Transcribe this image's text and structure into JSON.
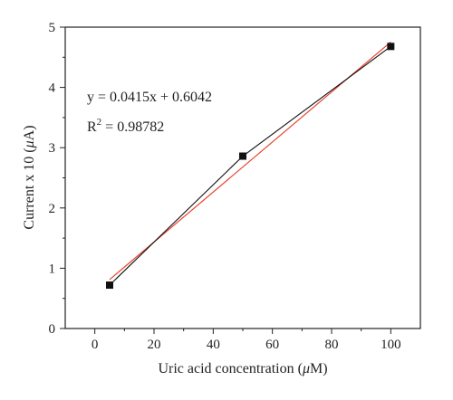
{
  "chart_data": {
    "type": "scatter",
    "xlabel_prefix": "Uric acid concentration (",
    "xlabel_unit_mu": "μ",
    "xlabel_unit_rest": "M)",
    "ylabel_prefix": "Current x 10 (",
    "ylabel_unit_mu": "μ",
    "ylabel_unit_rest": "A)",
    "xlim": [
      -10,
      110
    ],
    "ylim": [
      0,
      5
    ],
    "xticks": [
      0,
      20,
      40,
      60,
      80,
      100
    ],
    "yticks": [
      0,
      1,
      2,
      3,
      4,
      5
    ],
    "grid": false,
    "series": [
      {
        "kind": "data",
        "x": [
          5,
          50,
          100
        ],
        "y": [
          0.72,
          2.86,
          4.68
        ],
        "color": "#111111",
        "marker": "square"
      },
      {
        "kind": "fit",
        "x": [
          5,
          100
        ],
        "y": [
          0.8117,
          4.7542
        ],
        "color": "#e8442e"
      }
    ],
    "annotations": {
      "equation": "y = 0.0415x + 0.6042",
      "r2_prefix": "R",
      "r2_exp": "2",
      "r2_value": " = 0.98782"
    }
  }
}
